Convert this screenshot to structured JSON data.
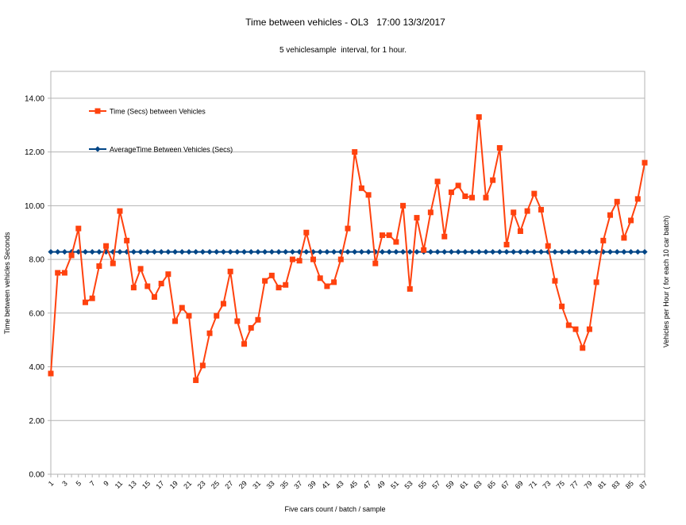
{
  "chart_data": {
    "type": "line",
    "title": "Time between vehicles - OL3   17:00 13/3/2017",
    "subtitle": "5 vehiclesample  interval, for 1 hour.",
    "xlabel": "Five cars count / batch / sample",
    "ylabel": "Time between vehicles Seconds",
    "y2label": "Vehicles per Hour ( for each 10 car batch)",
    "ylim": [
      0,
      15
    ],
    "yticks": [
      "0.00",
      "2.00",
      "4.00",
      "6.00",
      "8.00",
      "10.00",
      "12.00",
      "14.00"
    ],
    "xticks": [
      "1",
      "3",
      "5",
      "7",
      "9",
      "11",
      "13",
      "15",
      "17",
      "19",
      "21",
      "23",
      "25",
      "27",
      "29",
      "31",
      "33",
      "35",
      "37",
      "39",
      "41",
      "43",
      "45",
      "47",
      "49",
      "51",
      "53",
      "55",
      "57",
      "59",
      "61",
      "63",
      "65",
      "67",
      "69",
      "71",
      "73",
      "75",
      "77",
      "79",
      "81",
      "83",
      "85",
      "87"
    ],
    "grid": true,
    "legend_position": "top-left",
    "x": [
      1,
      2,
      3,
      4,
      5,
      6,
      7,
      8,
      9,
      10,
      11,
      12,
      13,
      14,
      15,
      16,
      17,
      18,
      19,
      20,
      21,
      22,
      23,
      24,
      25,
      26,
      27,
      28,
      29,
      30,
      31,
      32,
      33,
      34,
      35,
      36,
      37,
      38,
      39,
      40,
      41,
      42,
      43,
      44,
      45,
      46,
      47,
      48,
      49,
      50,
      51,
      52,
      53,
      54,
      55,
      56,
      57,
      58,
      59,
      60,
      61,
      62,
      63,
      64,
      65,
      66,
      67,
      68,
      69,
      70,
      71,
      72,
      73,
      74,
      75,
      76,
      77,
      78,
      79,
      80,
      81,
      82,
      83,
      84,
      85,
      86,
      87
    ],
    "series": [
      {
        "name": "Time (Secs) between Vehicles",
        "color": "#ff420e",
        "marker": "square",
        "values": [
          3.75,
          7.5,
          7.5,
          8.15,
          9.15,
          6.4,
          6.55,
          7.75,
          8.5,
          7.85,
          9.8,
          8.7,
          6.95,
          7.65,
          7.0,
          6.6,
          7.1,
          7.45,
          5.7,
          6.2,
          5.9,
          3.5,
          4.05,
          5.25,
          5.9,
          6.35,
          7.55,
          5.7,
          4.85,
          5.45,
          5.75,
          7.2,
          7.4,
          6.95,
          7.05,
          8.0,
          7.95,
          9.0,
          8.0,
          7.3,
          7.0,
          7.15,
          8.0,
          9.15,
          12.0,
          10.65,
          10.4,
          7.85,
          8.9,
          8.9,
          8.65,
          10.0,
          6.9,
          9.55,
          8.35,
          9.75,
          10.9,
          8.85,
          10.5,
          10.75,
          10.35,
          10.3,
          13.3,
          10.3,
          10.95,
          12.15,
          8.55,
          9.75,
          9.05,
          9.8,
          10.45,
          9.85,
          8.5,
          7.2,
          6.25,
          5.55,
          5.4,
          4.7,
          5.4,
          7.15,
          8.7,
          9.65,
          10.15,
          8.8,
          9.45,
          10.25,
          11.6
        ]
      },
      {
        "name": "AverageTime Between Vehicles (Secs)",
        "color": "#004586",
        "marker": "diamond",
        "values": [
          8.28,
          8.28,
          8.28,
          8.28,
          8.28,
          8.28,
          8.28,
          8.28,
          8.28,
          8.28,
          8.28,
          8.28,
          8.28,
          8.28,
          8.28,
          8.28,
          8.28,
          8.28,
          8.28,
          8.28,
          8.28,
          8.28,
          8.28,
          8.28,
          8.28,
          8.28,
          8.28,
          8.28,
          8.28,
          8.28,
          8.28,
          8.28,
          8.28,
          8.28,
          8.28,
          8.28,
          8.28,
          8.28,
          8.28,
          8.28,
          8.28,
          8.28,
          8.28,
          8.28,
          8.28,
          8.28,
          8.28,
          8.28,
          8.28,
          8.28,
          8.28,
          8.28,
          8.28,
          8.28,
          8.28,
          8.28,
          8.28,
          8.28,
          8.28,
          8.28,
          8.28,
          8.28,
          8.28,
          8.28,
          8.28,
          8.28,
          8.28,
          8.28,
          8.28,
          8.28,
          8.28,
          8.28,
          8.28,
          8.28,
          8.28,
          8.28,
          8.28,
          8.28,
          8.28,
          8.28,
          8.28,
          8.28,
          8.28,
          8.28,
          8.28,
          8.28,
          8.28
        ]
      }
    ]
  }
}
